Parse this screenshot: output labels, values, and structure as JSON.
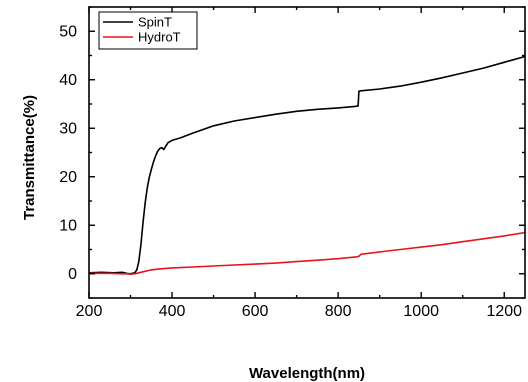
{
  "chart_data": {
    "type": "line",
    "title": "",
    "xlabel": "Wavelength(nm)",
    "ylabel": "Transmittance(%)",
    "xlim": [
      200,
      1250
    ],
    "ylim": [
      -5,
      55
    ],
    "xticks": [
      200,
      400,
      600,
      800,
      1000,
      1200
    ],
    "yticks": [
      0,
      10,
      20,
      30,
      40,
      50
    ],
    "grid": false,
    "legend_position": "top-left",
    "series": [
      {
        "name": "SpinT",
        "color": "#000000",
        "x": [
          200,
          230,
          260,
          280,
          290,
          300,
          310,
          315,
          320,
          325,
          330,
          335,
          340,
          345,
          350,
          355,
          360,
          365,
          370,
          375,
          380,
          385,
          390,
          400,
          420,
          450,
          500,
          550,
          600,
          650,
          700,
          750,
          800,
          840,
          848,
          850,
          852,
          900,
          950,
          1000,
          1050,
          1100,
          1150,
          1200,
          1250
        ],
        "y": [
          0.2,
          0.3,
          0.2,
          0.3,
          0.1,
          0.0,
          0.2,
          0.8,
          2.5,
          6.0,
          10.5,
          14.5,
          17.5,
          19.8,
          21.5,
          23.0,
          24.2,
          25.2,
          25.8,
          26.0,
          25.6,
          26.3,
          27.0,
          27.5,
          28.0,
          29.0,
          30.5,
          31.5,
          32.2,
          32.9,
          33.5,
          33.9,
          34.2,
          34.5,
          34.6,
          37.6,
          37.7,
          38.1,
          38.7,
          39.5,
          40.4,
          41.4,
          42.4,
          43.6,
          44.8
        ]
      },
      {
        "name": "HydroT",
        "color": "#e8141c",
        "x": [
          200,
          250,
          280,
          290,
          300,
          310,
          320,
          330,
          340,
          350,
          370,
          400,
          450,
          500,
          550,
          600,
          650,
          700,
          750,
          800,
          845,
          850,
          855,
          900,
          950,
          1000,
          1050,
          1100,
          1150,
          1200,
          1250
        ],
        "y": [
          0.1,
          0.1,
          0.0,
          0.0,
          -0.1,
          0.0,
          0.2,
          0.4,
          0.6,
          0.8,
          1.0,
          1.2,
          1.4,
          1.6,
          1.8,
          2.0,
          2.2,
          2.5,
          2.8,
          3.1,
          3.5,
          3.6,
          4.0,
          4.5,
          5.0,
          5.5,
          6.0,
          6.6,
          7.2,
          7.8,
          8.5
        ]
      }
    ]
  }
}
